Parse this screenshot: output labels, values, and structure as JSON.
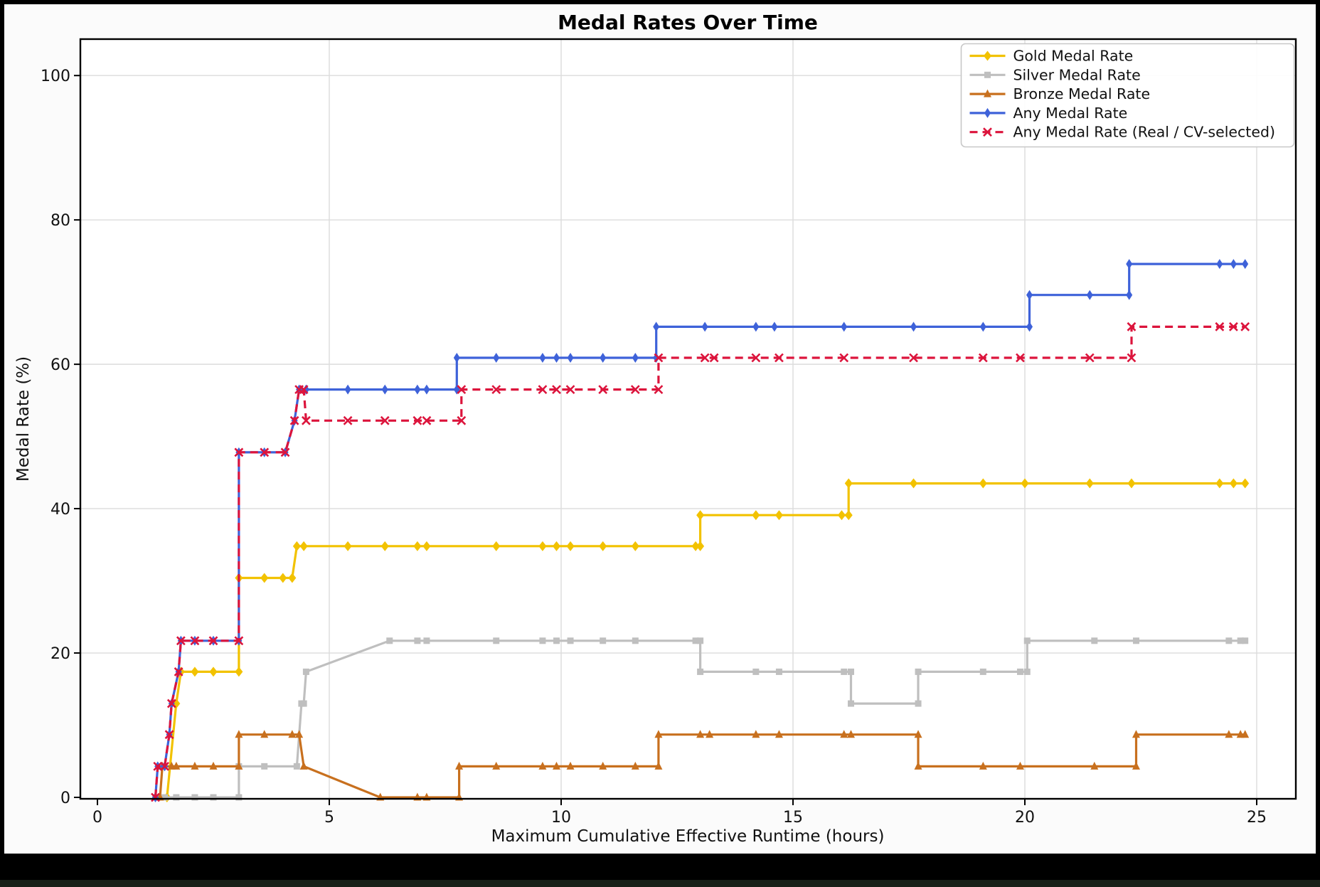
{
  "chart_data": {
    "type": "line",
    "title": "Medal Rates Over Time",
    "xlabel": "Maximum Cumulative Effective Runtime (hours)",
    "ylabel": "Medal Rate (%)",
    "xlim": [
      -0.4,
      25.9
    ],
    "ylim": [
      0,
      105
    ],
    "xticks": [
      0,
      5,
      10,
      15,
      20,
      25
    ],
    "yticks": [
      0,
      20,
      40,
      60,
      80,
      100
    ],
    "grid": true,
    "legend_position": "upper right",
    "series": [
      {
        "name": "Gold Medal Rate",
        "color": "#F2C200",
        "dash": "solid",
        "marker": "diamond",
        "points": [
          [
            1.5,
            0
          ],
          [
            1.7,
            13
          ],
          [
            1.8,
            17.4
          ],
          [
            2.1,
            17.4
          ],
          [
            2.5,
            17.4
          ],
          [
            3.05,
            17.4
          ],
          [
            3.05,
            30.4
          ],
          [
            3.6,
            30.4
          ],
          [
            4.0,
            30.4
          ],
          [
            4.2,
            30.4
          ],
          [
            4.3,
            34.8
          ],
          [
            4.45,
            34.8
          ],
          [
            5.4,
            34.8
          ],
          [
            6.2,
            34.8
          ],
          [
            6.9,
            34.8
          ],
          [
            7.1,
            34.8
          ],
          [
            8.6,
            34.8
          ],
          [
            9.6,
            34.8
          ],
          [
            9.9,
            34.8
          ],
          [
            10.2,
            34.8
          ],
          [
            10.9,
            34.8
          ],
          [
            11.6,
            34.8
          ],
          [
            12.9,
            34.8
          ],
          [
            13.0,
            34.8
          ],
          [
            13.0,
            39.1
          ],
          [
            14.2,
            39.1
          ],
          [
            14.7,
            39.1
          ],
          [
            16.05,
            39.1
          ],
          [
            16.2,
            39.1
          ],
          [
            16.2,
            43.5
          ],
          [
            17.6,
            43.5
          ],
          [
            19.1,
            43.5
          ],
          [
            20.0,
            43.5
          ],
          [
            21.4,
            43.5
          ],
          [
            22.3,
            43.5
          ],
          [
            24.2,
            43.5
          ],
          [
            24.5,
            43.5
          ],
          [
            24.75,
            43.5
          ]
        ]
      },
      {
        "name": "Silver Medal Rate",
        "color": "#BFBFBF",
        "dash": "solid",
        "marker": "square",
        "points": [
          [
            1.25,
            0
          ],
          [
            1.45,
            0
          ],
          [
            1.7,
            0
          ],
          [
            2.1,
            0
          ],
          [
            2.5,
            0
          ],
          [
            3.05,
            0
          ],
          [
            3.05,
            4.3
          ],
          [
            3.6,
            4.3
          ],
          [
            4.3,
            4.3
          ],
          [
            4.4,
            13
          ],
          [
            4.45,
            13
          ],
          [
            4.5,
            17.4
          ],
          [
            6.3,
            21.7
          ],
          [
            6.9,
            21.7
          ],
          [
            7.1,
            21.7
          ],
          [
            8.6,
            21.7
          ],
          [
            9.6,
            21.7
          ],
          [
            9.9,
            21.7
          ],
          [
            10.2,
            21.7
          ],
          [
            10.9,
            21.7
          ],
          [
            11.6,
            21.7
          ],
          [
            12.9,
            21.7
          ],
          [
            13.0,
            21.7
          ],
          [
            13.0,
            17.4
          ],
          [
            14.2,
            17.4
          ],
          [
            14.7,
            17.4
          ],
          [
            16.1,
            17.4
          ],
          [
            16.25,
            17.4
          ],
          [
            16.25,
            13
          ],
          [
            17.7,
            13
          ],
          [
            17.7,
            17.4
          ],
          [
            19.1,
            17.4
          ],
          [
            19.9,
            17.4
          ],
          [
            20.05,
            17.4
          ],
          [
            20.05,
            21.7
          ],
          [
            21.5,
            21.7
          ],
          [
            22.4,
            21.7
          ],
          [
            24.4,
            21.7
          ],
          [
            24.65,
            21.7
          ],
          [
            24.75,
            21.7
          ]
        ]
      },
      {
        "name": "Bronze Medal Rate",
        "color": "#C8701E",
        "dash": "solid",
        "marker": "triangle",
        "points": [
          [
            1.35,
            0
          ],
          [
            1.4,
            4.3
          ],
          [
            1.6,
            4.3
          ],
          [
            1.7,
            4.3
          ],
          [
            2.1,
            4.3
          ],
          [
            2.5,
            4.3
          ],
          [
            3.05,
            4.3
          ],
          [
            3.05,
            8.7
          ],
          [
            3.6,
            8.7
          ],
          [
            4.2,
            8.7
          ],
          [
            4.35,
            8.7
          ],
          [
            4.45,
            4.3
          ],
          [
            6.1,
            0
          ],
          [
            6.9,
            0
          ],
          [
            7.1,
            0
          ],
          [
            7.8,
            0
          ],
          [
            7.8,
            4.3
          ],
          [
            8.6,
            4.3
          ],
          [
            9.6,
            4.3
          ],
          [
            9.9,
            4.3
          ],
          [
            10.2,
            4.3
          ],
          [
            10.9,
            4.3
          ],
          [
            11.6,
            4.3
          ],
          [
            12.1,
            4.3
          ],
          [
            12.1,
            8.7
          ],
          [
            13.0,
            8.7
          ],
          [
            13.2,
            8.7
          ],
          [
            14.2,
            8.7
          ],
          [
            14.7,
            8.7
          ],
          [
            16.1,
            8.7
          ],
          [
            16.25,
            8.7
          ],
          [
            17.7,
            8.7
          ],
          [
            17.7,
            4.3
          ],
          [
            19.1,
            4.3
          ],
          [
            19.9,
            4.3
          ],
          [
            21.5,
            4.3
          ],
          [
            22.4,
            4.3
          ],
          [
            22.4,
            8.7
          ],
          [
            24.4,
            8.7
          ],
          [
            24.65,
            8.7
          ],
          [
            24.75,
            8.7
          ]
        ]
      },
      {
        "name": "Any Medal Rate",
        "color": "#3E62D9",
        "dash": "solid",
        "marker": "thin-diamond",
        "points": [
          [
            1.25,
            0
          ],
          [
            1.3,
            4.3
          ],
          [
            1.45,
            4.3
          ],
          [
            1.55,
            8.7
          ],
          [
            1.6,
            13
          ],
          [
            1.75,
            17.4
          ],
          [
            1.8,
            21.7
          ],
          [
            2.1,
            21.7
          ],
          [
            2.5,
            21.7
          ],
          [
            3.05,
            21.7
          ],
          [
            3.05,
            47.8
          ],
          [
            3.6,
            47.8
          ],
          [
            4.05,
            47.8
          ],
          [
            4.25,
            52.2
          ],
          [
            4.35,
            56.5
          ],
          [
            4.5,
            56.5
          ],
          [
            5.4,
            56.5
          ],
          [
            6.2,
            56.5
          ],
          [
            6.9,
            56.5
          ],
          [
            7.1,
            56.5
          ],
          [
            7.75,
            56.5
          ],
          [
            7.75,
            60.9
          ],
          [
            8.6,
            60.9
          ],
          [
            9.6,
            60.9
          ],
          [
            9.9,
            60.9
          ],
          [
            10.2,
            60.9
          ],
          [
            10.9,
            60.9
          ],
          [
            11.6,
            60.9
          ],
          [
            12.05,
            60.9
          ],
          [
            12.05,
            65.2
          ],
          [
            13.1,
            65.2
          ],
          [
            14.2,
            65.2
          ],
          [
            14.6,
            65.2
          ],
          [
            16.1,
            65.2
          ],
          [
            17.6,
            65.2
          ],
          [
            19.1,
            65.2
          ],
          [
            20.1,
            65.2
          ],
          [
            20.1,
            69.6
          ],
          [
            21.4,
            69.6
          ],
          [
            22.25,
            69.6
          ],
          [
            22.25,
            73.9
          ],
          [
            24.2,
            73.9
          ],
          [
            24.5,
            73.9
          ],
          [
            24.75,
            73.9
          ]
        ]
      },
      {
        "name": "Any Medal Rate (Real / CV-selected)",
        "color": "#DC143C",
        "dash": "dashed",
        "marker": "x",
        "points": [
          [
            1.25,
            0
          ],
          [
            1.3,
            4.3
          ],
          [
            1.45,
            4.3
          ],
          [
            1.55,
            8.7
          ],
          [
            1.6,
            13
          ],
          [
            1.75,
            17.4
          ],
          [
            1.8,
            21.7
          ],
          [
            2.1,
            21.7
          ],
          [
            2.5,
            21.7
          ],
          [
            3.05,
            21.7
          ],
          [
            3.05,
            47.8
          ],
          [
            3.6,
            47.8
          ],
          [
            4.05,
            47.8
          ],
          [
            4.25,
            52.2
          ],
          [
            4.35,
            56.5
          ],
          [
            4.45,
            56.5
          ],
          [
            4.5,
            52.2
          ],
          [
            5.4,
            52.2
          ],
          [
            6.2,
            52.2
          ],
          [
            6.9,
            52.2
          ],
          [
            7.1,
            52.2
          ],
          [
            7.85,
            52.2
          ],
          [
            7.85,
            56.5
          ],
          [
            8.6,
            56.5
          ],
          [
            9.6,
            56.5
          ],
          [
            9.9,
            56.5
          ],
          [
            10.2,
            56.5
          ],
          [
            10.9,
            56.5
          ],
          [
            11.6,
            56.5
          ],
          [
            12.1,
            56.5
          ],
          [
            12.1,
            60.9
          ],
          [
            13.1,
            60.9
          ],
          [
            13.3,
            60.9
          ],
          [
            14.2,
            60.9
          ],
          [
            14.7,
            60.9
          ],
          [
            16.1,
            60.9
          ],
          [
            17.6,
            60.9
          ],
          [
            19.1,
            60.9
          ],
          [
            19.9,
            60.9
          ],
          [
            21.4,
            60.9
          ],
          [
            22.3,
            60.9
          ],
          [
            22.3,
            65.2
          ],
          [
            24.2,
            65.2
          ],
          [
            24.5,
            65.2
          ],
          [
            24.75,
            65.2
          ]
        ]
      }
    ],
    "colors": {
      "grid": "#dcdcdc",
      "spine": "#000000",
      "plot_bg": "#ffffff",
      "figure_bg": "#fbfbfb",
      "frame": "#000000",
      "legend_border": "#c8c8c8"
    }
  }
}
